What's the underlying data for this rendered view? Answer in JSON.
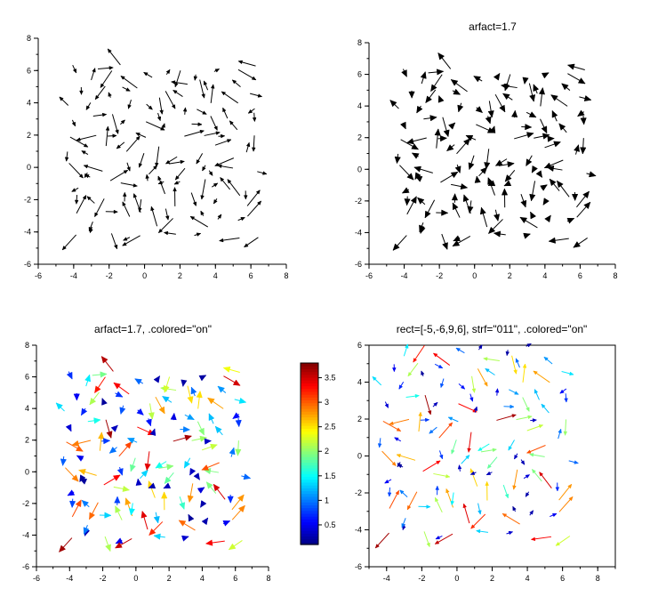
{
  "chart_data": [
    {
      "type": "quiver",
      "title": "",
      "colored": false,
      "xlim": [
        -6,
        8
      ],
      "ylim": [
        -6,
        8
      ],
      "xticks": [
        "-6",
        "-4",
        "-2",
        "0",
        "2",
        "4",
        "6",
        "8"
      ],
      "yticks": [
        "-6",
        "-4",
        "-2",
        "0",
        "2",
        "4",
        "6",
        "8"
      ],
      "grid": false,
      "grid_x": [
        -4,
        -3,
        -2,
        -1,
        0,
        1,
        2,
        3,
        4,
        5,
        6
      ],
      "grid_y": [
        -4,
        -3,
        -2,
        -1,
        0,
        1,
        2,
        3,
        4,
        5,
        6
      ]
    },
    {
      "type": "quiver",
      "title": "arfact=1.7",
      "colored": false,
      "arfact": 1.7,
      "xlim": [
        -6,
        8
      ],
      "ylim": [
        -6,
        8
      ],
      "xticks": [
        "-6",
        "-4",
        "-2",
        "0",
        "2",
        "4",
        "6",
        "8"
      ],
      "yticks": [
        "-6",
        "-4",
        "-2",
        "0",
        "2",
        "4",
        "6",
        "8"
      ],
      "grid": false,
      "grid_x": [
        -4,
        -3,
        -2,
        -1,
        0,
        1,
        2,
        3,
        4,
        5,
        6
      ],
      "grid_y": [
        -4,
        -3,
        -2,
        -1,
        0,
        1,
        2,
        3,
        4,
        5,
        6
      ]
    },
    {
      "type": "quiver",
      "title": "arfact=1.7, .colored=\"on\"",
      "colored": true,
      "arfact": 1.7,
      "xlim": [
        -6,
        8
      ],
      "ylim": [
        -6,
        8
      ],
      "xticks": [
        "-6",
        "-4",
        "-2",
        "0",
        "2",
        "4",
        "6",
        "8"
      ],
      "yticks": [
        "-6",
        "-4",
        "-2",
        "0",
        "2",
        "4",
        "6",
        "8"
      ],
      "grid": false,
      "grid_x": [
        -4,
        -3,
        -2,
        -1,
        0,
        1,
        2,
        3,
        4,
        5,
        6
      ],
      "grid_y": [
        -4,
        -3,
        -2,
        -1,
        0,
        1,
        2,
        3,
        4,
        5,
        6
      ]
    },
    {
      "type": "quiver",
      "title": "rect=[-5,-6,9,6], strf=\"011\", .colored=\"on\"",
      "colored": true,
      "xlim": [
        -5,
        9
      ],
      "ylim": [
        -6,
        6
      ],
      "xticks": [
        "-4",
        "-2",
        "0",
        "2",
        "4",
        "6",
        "8"
      ],
      "yticks": [
        "-6",
        "-4",
        "-2",
        "0",
        "2",
        "4",
        "6"
      ],
      "grid": false,
      "grid_x": [
        -4,
        -3,
        -2,
        -1,
        0,
        1,
        2,
        3,
        4,
        5,
        6
      ],
      "grid_y": [
        -4,
        -3,
        -2,
        -1,
        0,
        1,
        2,
        3,
        4,
        5,
        6
      ]
    }
  ],
  "colorbar": {
    "ticks": [
      "0.5",
      "1",
      "1.5",
      "2",
      "2.5",
      "3",
      "3.5"
    ],
    "tick_values": [
      0.5,
      1,
      1.5,
      2,
      2.5,
      3,
      3.5
    ],
    "range": [
      0.1,
      3.8
    ],
    "colormap": "jet"
  }
}
